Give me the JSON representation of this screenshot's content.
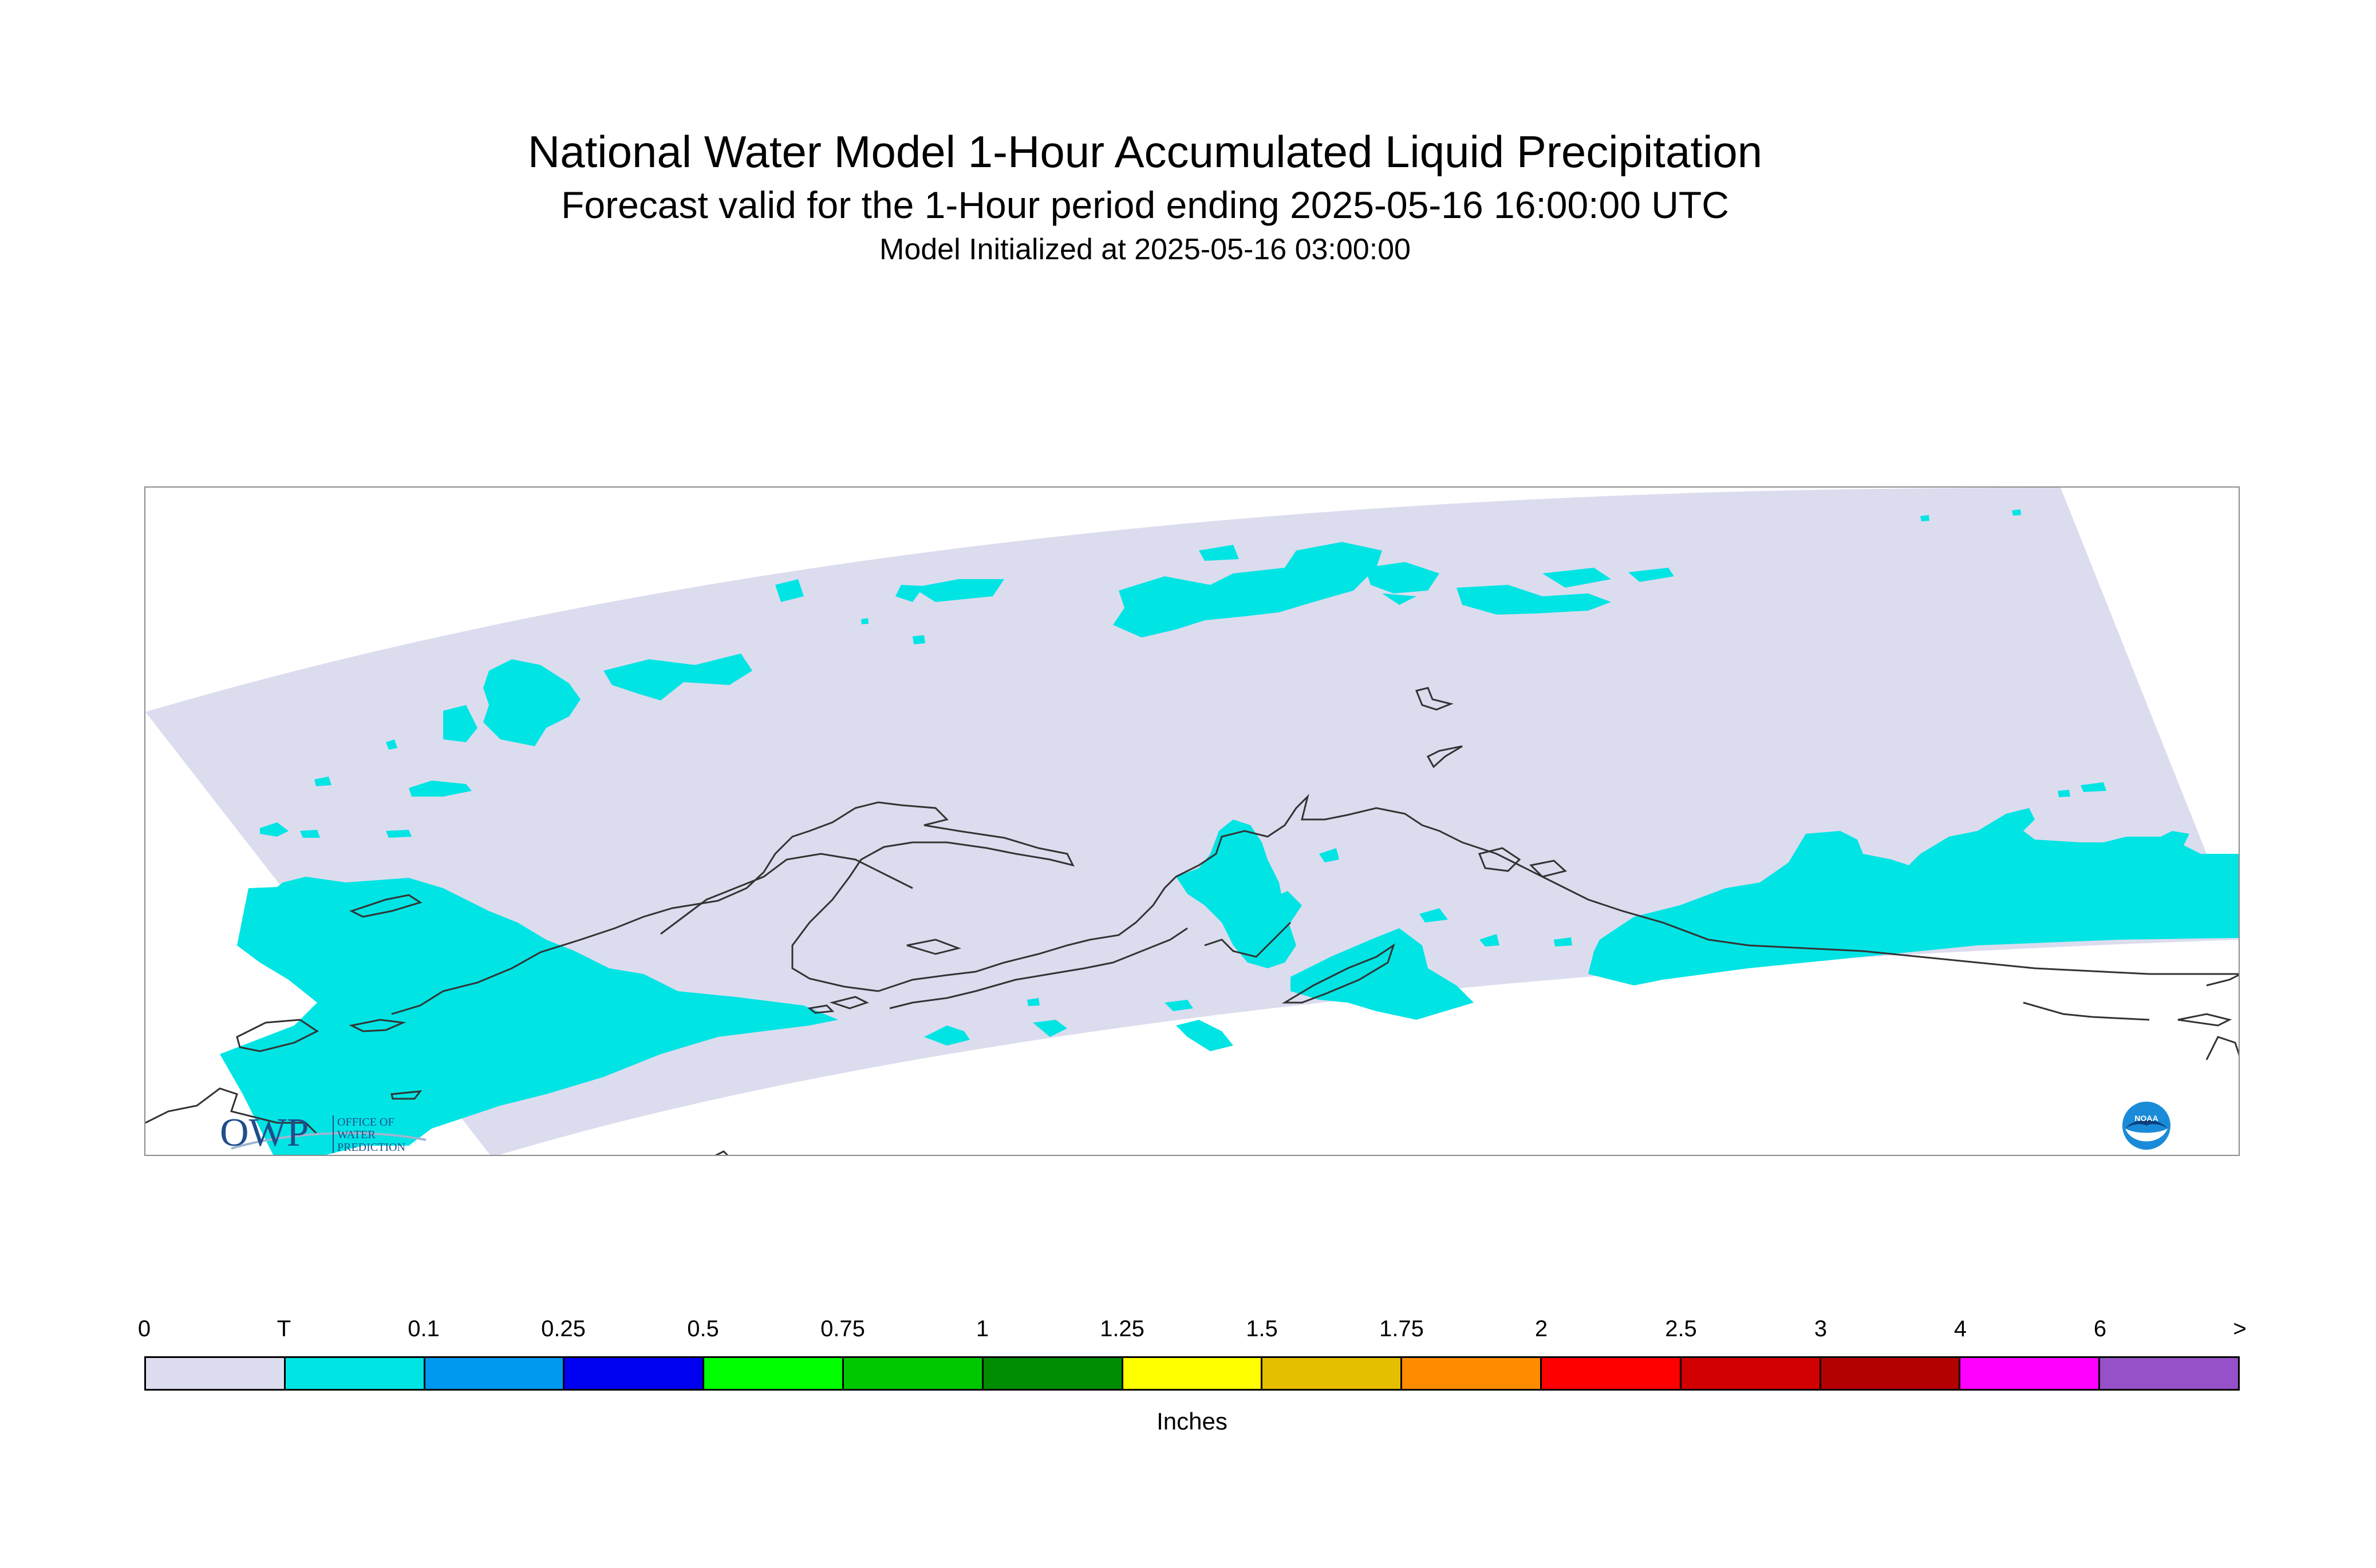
{
  "header": {
    "title": "National Water Model 1-Hour Accumulated Liquid Precipitation",
    "subtitle": "Forecast valid for the 1-Hour period ending 2025-05-16 16:00:00 UTC",
    "init": "Model Initialized at 2025-05-16 03:00:00"
  },
  "logos": {
    "owp_letters": "OWP",
    "owp_line1": "OFFICE OF",
    "owp_line2": "WATER",
    "owp_line3": "PREDICTION",
    "noaa_text": "NOAA"
  },
  "colors": {
    "domain_fill": "#dcdcef",
    "precip_trace": "#00e4e4",
    "coastline": "#333333"
  },
  "legend": {
    "ticks": [
      "0",
      "T",
      "0.1",
      "0.25",
      "0.5",
      "0.75",
      "1",
      "1.25",
      "1.5",
      "1.75",
      "2",
      "2.5",
      "3",
      "4",
      "6",
      ">"
    ],
    "colors": [
      "#dcdcef",
      "#00e4e4",
      "#0099f0",
      "#0000f0",
      "#00ff00",
      "#00c800",
      "#008c00",
      "#ffff00",
      "#e6be00",
      "#ff8c00",
      "#ff0000",
      "#d20000",
      "#b40000",
      "#ff00ff",
      "#9650c8"
    ],
    "units": "Inches"
  }
}
